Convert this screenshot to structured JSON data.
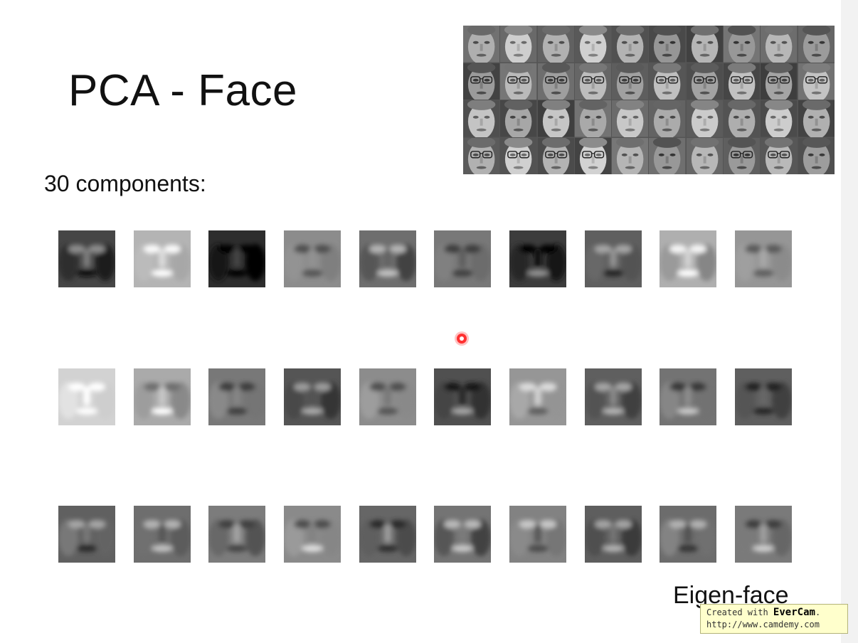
{
  "slide": {
    "title": "PCA - Face",
    "subtitle": "30 components:",
    "caption": "Eigen-face"
  },
  "watermark": {
    "prefix": "Created with ",
    "brand": "EverCam",
    "suffix": ".",
    "url": "http://www.camdemy.com",
    "background_color": "#ffffcc"
  },
  "collage": {
    "description_rows": 4,
    "description_cols": 10
  },
  "colors": {
    "cursor": "#ff3030"
  }
}
